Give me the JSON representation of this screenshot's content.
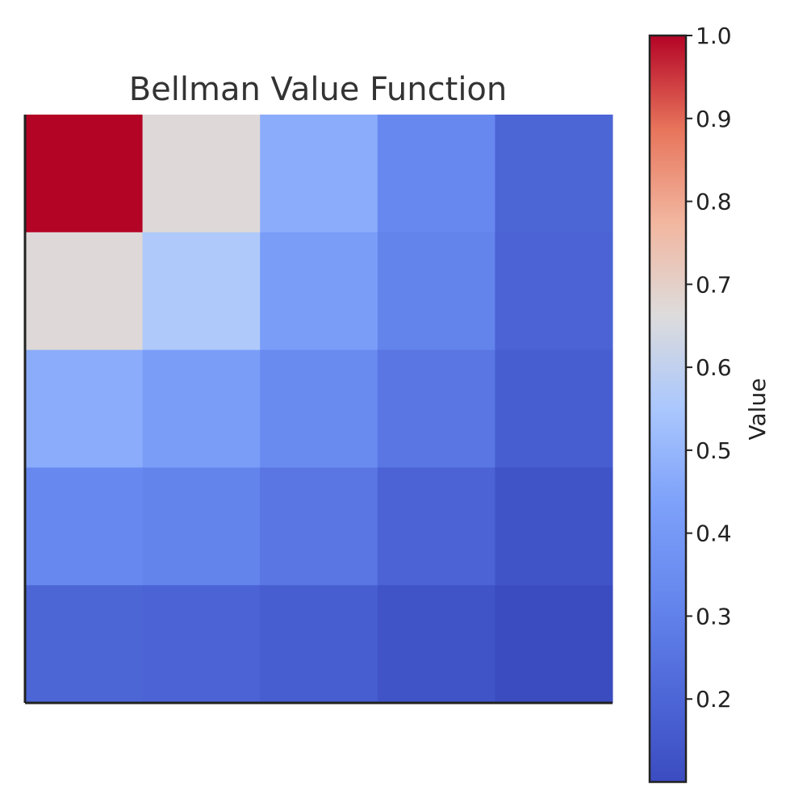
{
  "chart_data": {
    "type": "heatmap",
    "title": "Bellman Value Function",
    "xlabel": "",
    "ylabel": "",
    "colormap": "coolwarm",
    "grid": false,
    "values": [
      [
        1.0,
        0.67,
        0.47,
        0.33,
        0.2
      ],
      [
        0.67,
        0.56,
        0.42,
        0.31,
        0.19
      ],
      [
        0.47,
        0.42,
        0.34,
        0.26,
        0.17
      ],
      [
        0.33,
        0.31,
        0.26,
        0.19,
        0.13
      ],
      [
        0.2,
        0.19,
        0.17,
        0.13,
        0.1
      ]
    ],
    "colorbar": {
      "label": "Value",
      "min": 0.1,
      "max": 1.0,
      "ticks": [
        0.2,
        0.3,
        0.4,
        0.5,
        0.6,
        0.7,
        0.8,
        0.9,
        1.0
      ],
      "tick_labels": [
        "0.2",
        "0.3",
        "0.4",
        "0.5",
        "0.6",
        "0.7",
        "0.8",
        "0.9",
        "1.0"
      ]
    }
  }
}
